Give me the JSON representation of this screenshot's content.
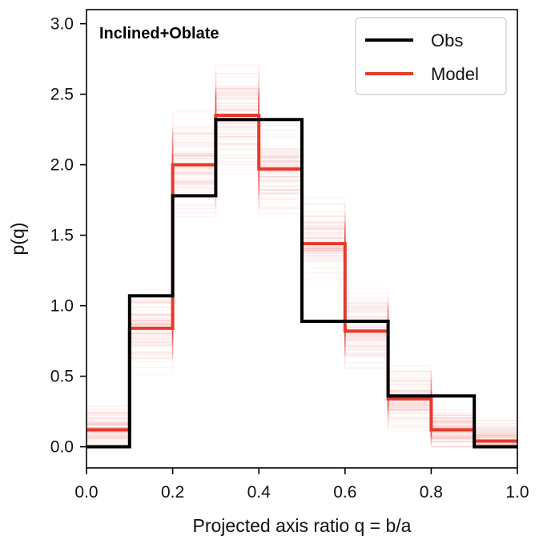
{
  "chart_data": {
    "type": "line",
    "drawstyle": "steps",
    "annotation": "Inclined+Oblate",
    "xlabel": "Projected axis ratio q = b/a",
    "ylabel": "p(q)",
    "xlim": [
      0.0,
      1.0
    ],
    "ylim": [
      -0.15,
      3.1
    ],
    "xticks": [
      "0.0",
      "0.2",
      "0.4",
      "0.6",
      "0.8",
      "1.0"
    ],
    "yticks": [
      "0.0",
      "0.5",
      "1.0",
      "1.5",
      "2.0",
      "2.5",
      "3.0"
    ],
    "bin_edges": [
      0.0,
      0.1,
      0.2,
      0.3,
      0.4,
      0.5,
      0.6,
      0.7,
      0.8,
      0.9,
      1.0
    ],
    "legend_position": "top-right",
    "series": [
      {
        "name": "Obs",
        "color": "#000000",
        "values": [
          0.0,
          1.07,
          1.78,
          2.32,
          2.32,
          0.89,
          0.89,
          0.36,
          0.36,
          0.0
        ]
      },
      {
        "name": "Model",
        "color": "#e8392a",
        "values": [
          0.12,
          0.84,
          2.0,
          2.35,
          1.97,
          1.44,
          0.82,
          0.34,
          0.12,
          0.04
        ]
      }
    ],
    "samples_color": "#e8392a"
  }
}
